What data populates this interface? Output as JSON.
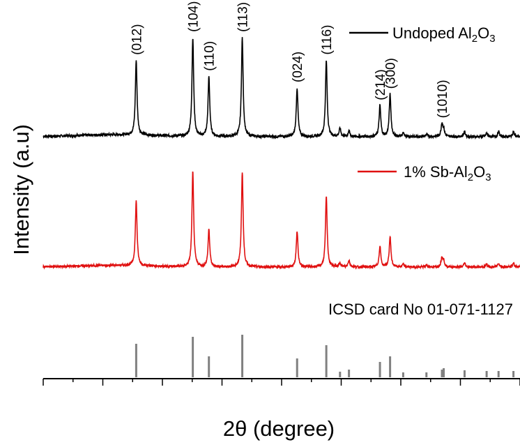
{
  "chart_data": {
    "type": "line",
    "xlabel": "2θ (degree)",
    "ylabel": "Intensity (a.u)",
    "x_tick_labels_shown": false,
    "y_ticks_shown": false,
    "reference_label": "ICSD card No 01-071-1127",
    "legend": [
      {
        "series": "undoped",
        "text": "Undoped Al",
        "sub1": "2",
        "mid": "O",
        "sub2": "3",
        "color": "#000000"
      },
      {
        "series": "doped",
        "text": "1% Sb-Al",
        "sub1": "2",
        "mid": "O",
        "sub2": "3",
        "color": "#e01010"
      }
    ],
    "peak_labels": [
      {
        "hkl": "(012)",
        "x": 25.6
      },
      {
        "hkl": "(104)",
        "x": 35.1
      },
      {
        "hkl": "(110)",
        "x": 37.8
      },
      {
        "hkl": "(113)",
        "x": 43.4
      },
      {
        "hkl": "(024)",
        "x": 52.6
      },
      {
        "hkl": "(116)",
        "x": 57.5
      },
      {
        "hkl": "(214)",
        "x": 66.5
      },
      {
        "hkl": "(300)",
        "x": 68.2
      },
      {
        "hkl": "(1010)",
        "x": 76.9
      }
    ],
    "series": [
      {
        "name": "Undoped Al2O3",
        "color": "#000000",
        "baseline": 1.0,
        "noise": 0.08,
        "peaks": [
          {
            "x": 25.6,
            "h": 4.6
          },
          {
            "x": 35.1,
            "h": 6.1
          },
          {
            "x": 37.8,
            "h": 3.7
          },
          {
            "x": 43.4,
            "h": 6.1
          },
          {
            "x": 52.6,
            "h": 3.0
          },
          {
            "x": 57.5,
            "h": 4.7
          },
          {
            "x": 59.8,
            "h": 0.5
          },
          {
            "x": 61.3,
            "h": 0.35
          },
          {
            "x": 66.5,
            "h": 1.9
          },
          {
            "x": 68.2,
            "h": 2.6
          },
          {
            "x": 70.4,
            "h": 0.2
          },
          {
            "x": 74.3,
            "h": 0.15
          },
          {
            "x": 76.9,
            "h": 0.8
          },
          {
            "x": 77.2,
            "h": 0.4
          },
          {
            "x": 80.7,
            "h": 0.3
          },
          {
            "x": 84.4,
            "h": 0.2
          },
          {
            "x": 86.4,
            "h": 0.3
          },
          {
            "x": 88.9,
            "h": 0.3
          }
        ]
      },
      {
        "name": "1% Sb-Al2O3",
        "color": "#e01010",
        "baseline": 1.0,
        "noise": 0.08,
        "peaks": [
          {
            "x": 25.6,
            "h": 4.7
          },
          {
            "x": 35.1,
            "h": 6.9
          },
          {
            "x": 37.8,
            "h": 2.7
          },
          {
            "x": 43.4,
            "h": 6.9
          },
          {
            "x": 52.6,
            "h": 2.6
          },
          {
            "x": 57.5,
            "h": 5.1
          },
          {
            "x": 59.8,
            "h": 0.3
          },
          {
            "x": 61.3,
            "h": 0.5
          },
          {
            "x": 66.5,
            "h": 1.5
          },
          {
            "x": 68.2,
            "h": 2.2
          },
          {
            "x": 70.4,
            "h": 0.2
          },
          {
            "x": 74.3,
            "h": 0.15
          },
          {
            "x": 76.9,
            "h": 0.7
          },
          {
            "x": 77.2,
            "h": 0.4
          },
          {
            "x": 80.7,
            "h": 0.3
          },
          {
            "x": 84.4,
            "h": 0.2
          },
          {
            "x": 86.4,
            "h": 0.3
          },
          {
            "x": 88.9,
            "h": 0.3
          }
        ]
      }
    ],
    "reference_lines": [
      {
        "x": 25.6,
        "h": 0.48
      },
      {
        "x": 35.1,
        "h": 0.58
      },
      {
        "x": 37.8,
        "h": 0.3
      },
      {
        "x": 43.4,
        "h": 0.61
      },
      {
        "x": 52.6,
        "h": 0.27
      },
      {
        "x": 57.5,
        "h": 0.46
      },
      {
        "x": 59.8,
        "h": 0.08
      },
      {
        "x": 61.3,
        "h": 0.11
      },
      {
        "x": 66.5,
        "h": 0.22
      },
      {
        "x": 68.2,
        "h": 0.3
      },
      {
        "x": 70.4,
        "h": 0.07
      },
      {
        "x": 74.3,
        "h": 0.07
      },
      {
        "x": 76.9,
        "h": 0.11
      },
      {
        "x": 77.2,
        "h": 0.13
      },
      {
        "x": 80.7,
        "h": 0.1
      },
      {
        "x": 84.4,
        "h": 0.09
      },
      {
        "x": 86.4,
        "h": 0.09
      },
      {
        "x": 88.9,
        "h": 0.09
      }
    ],
    "reference_color": "#808080",
    "xlim": [
      10,
      90
    ],
    "x_major_tick_step": 10,
    "x_minor_tick_step": 5,
    "grid": false
  }
}
